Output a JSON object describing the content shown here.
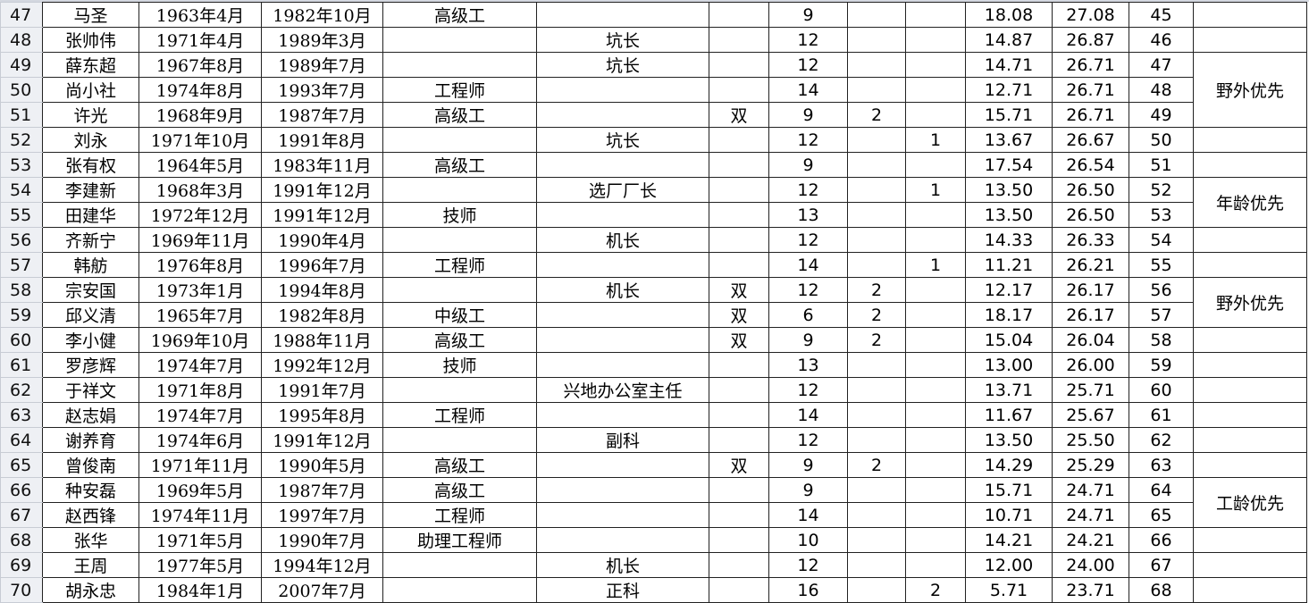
{
  "rows": [
    {
      "row": "47",
      "name": "马圣",
      "birth": "1963年4月",
      "work": "1982年10月",
      "title": "高级工",
      "post": "",
      "dbl": "",
      "score": "9",
      "c9": "",
      "c10": "",
      "c11": "18.08",
      "total": "27.08",
      "rank": "45"
    },
    {
      "row": "48",
      "name": "张帅伟",
      "birth": "1971年4月",
      "work": "1989年3月",
      "title": "",
      "post": "坑长",
      "dbl": "",
      "score": "12",
      "c9": "",
      "c10": "",
      "c11": "14.87",
      "total": "26.87",
      "rank": "46"
    },
    {
      "row": "49",
      "name": "薛东超",
      "birth": "1967年8月",
      "work": "1989年7月",
      "title": "",
      "post": "坑长",
      "dbl": "",
      "score": "12",
      "c9": "",
      "c10": "",
      "c11": "14.71",
      "total": "26.71",
      "rank": "47"
    },
    {
      "row": "50",
      "name": "尚小社",
      "birth": "1974年8月",
      "work": "1993年7月",
      "title": "工程师",
      "post": "",
      "dbl": "",
      "score": "14",
      "c9": "",
      "c10": "",
      "c11": "12.71",
      "total": "26.71",
      "rank": "48"
    },
    {
      "row": "51",
      "name": "许光",
      "birth": "1968年9月",
      "work": "1987年7月",
      "title": "高级工",
      "post": "",
      "dbl": "双",
      "score": "9",
      "c9": "2",
      "c10": "",
      "c11": "15.71",
      "total": "26.71",
      "rank": "49"
    },
    {
      "row": "52",
      "name": "刘永",
      "birth": "1971年10月",
      "work": "1991年8月",
      "title": "",
      "post": "坑长",
      "dbl": "",
      "score": "12",
      "c9": "",
      "c10": "1",
      "c11": "13.67",
      "total": "26.67",
      "rank": "50"
    },
    {
      "row": "53",
      "name": "张有权",
      "birth": "1964年5月",
      "work": "1983年11月",
      "title": "高级工",
      "post": "",
      "dbl": "",
      "score": "9",
      "c9": "",
      "c10": "",
      "c11": "17.54",
      "total": "26.54",
      "rank": "51"
    },
    {
      "row": "54",
      "name": "李建新",
      "birth": "1968年3月",
      "work": "1991年12月",
      "title": "",
      "post": "选厂厂长",
      "dbl": "",
      "score": "12",
      "c9": "",
      "c10": "1",
      "c11": "13.50",
      "total": "26.50",
      "rank": "52"
    },
    {
      "row": "55",
      "name": "田建华",
      "birth": "1972年12月",
      "work": "1991年12月",
      "title": "技师",
      "post": "",
      "dbl": "",
      "score": "13",
      "c9": "",
      "c10": "",
      "c11": "13.50",
      "total": "26.50",
      "rank": "53"
    },
    {
      "row": "56",
      "name": "齐新宁",
      "birth": "1969年11月",
      "work": "1990年4月",
      "title": "",
      "post": "机长",
      "dbl": "",
      "score": "12",
      "c9": "",
      "c10": "",
      "c11": "14.33",
      "total": "26.33",
      "rank": "54"
    },
    {
      "row": "57",
      "name": "韩舫",
      "birth": "1976年8月",
      "work": "1996年7月",
      "title": "工程师",
      "post": "",
      "dbl": "",
      "score": "14",
      "c9": "",
      "c10": "1",
      "c11": "11.21",
      "total": "26.21",
      "rank": "55"
    },
    {
      "row": "58",
      "name": "宗安国",
      "birth": "1973年1月",
      "work": "1994年8月",
      "title": "",
      "post": "机长",
      "dbl": "双",
      "score": "12",
      "c9": "2",
      "c10": "",
      "c11": "12.17",
      "total": "26.17",
      "rank": "56"
    },
    {
      "row": "59",
      "name": "邱义清",
      "birth": "1965年7月",
      "work": "1982年8月",
      "title": "中级工",
      "post": "",
      "dbl": "双",
      "score": "6",
      "c9": "2",
      "c10": "",
      "c11": "18.17",
      "total": "26.17",
      "rank": "57"
    },
    {
      "row": "60",
      "name": "李小健",
      "birth": "1969年10月",
      "work": "1988年11月",
      "title": "高级工",
      "post": "",
      "dbl": "双",
      "score": "9",
      "c9": "2",
      "c10": "",
      "c11": "15.04",
      "total": "26.04",
      "rank": "58"
    },
    {
      "row": "61",
      "name": "罗彦辉",
      "birth": "1974年7月",
      "work": "1992年12月",
      "title": "技师",
      "post": "",
      "dbl": "",
      "score": "13",
      "c9": "",
      "c10": "",
      "c11": "13.00",
      "total": "26.00",
      "rank": "59"
    },
    {
      "row": "62",
      "name": "于祥文",
      "birth": "1971年8月",
      "work": "1991年7月",
      "title": "",
      "post": "兴地办公室主任",
      "dbl": "",
      "score": "12",
      "c9": "",
      "c10": "",
      "c11": "13.71",
      "total": "25.71",
      "rank": "60"
    },
    {
      "row": "63",
      "name": "赵志娟",
      "birth": "1974年7月",
      "work": "1995年8月",
      "title": "工程师",
      "post": "",
      "dbl": "",
      "score": "14",
      "c9": "",
      "c10": "",
      "c11": "11.67",
      "total": "25.67",
      "rank": "61"
    },
    {
      "row": "64",
      "name": "谢养育",
      "birth": "1974年6月",
      "work": "1991年12月",
      "title": "",
      "post": "副科",
      "dbl": "",
      "score": "12",
      "c9": "",
      "c10": "",
      "c11": "13.50",
      "total": "25.50",
      "rank": "62"
    },
    {
      "row": "65",
      "name": "曾俊南",
      "birth": "1971年11月",
      "work": "1990年5月",
      "title": "高级工",
      "post": "",
      "dbl": "双",
      "score": "9",
      "c9": "2",
      "c10": "",
      "c11": "14.29",
      "total": "25.29",
      "rank": "63"
    },
    {
      "row": "66",
      "name": "种安磊",
      "birth": "1969年5月",
      "work": "1987年7月",
      "title": "高级工",
      "post": "",
      "dbl": "",
      "score": "9",
      "c9": "",
      "c10": "",
      "c11": "15.71",
      "total": "24.71",
      "rank": "64"
    },
    {
      "row": "67",
      "name": "赵西锋",
      "birth": "1974年11月",
      "work": "1997年7月",
      "title": "工程师",
      "post": "",
      "dbl": "",
      "score": "14",
      "c9": "",
      "c10": "",
      "c11": "10.71",
      "total": "24.71",
      "rank": "65"
    },
    {
      "row": "68",
      "name": "张华",
      "birth": "1971年5月",
      "work": "1990年7月",
      "title": "助理工程师",
      "post": "",
      "dbl": "",
      "score": "10",
      "c9": "",
      "c10": "",
      "c11": "14.21",
      "total": "24.21",
      "rank": "66"
    },
    {
      "row": "69",
      "name": "王周",
      "birth": "1977年5月",
      "work": "1994年12月",
      "title": "",
      "post": "机长",
      "dbl": "",
      "score": "12",
      "c9": "",
      "c10": "",
      "c11": "12.00",
      "total": "24.00",
      "rank": "67"
    },
    {
      "row": "70",
      "name": "胡永忠",
      "birth": "1984年1月",
      "work": "2007年7月",
      "title": "",
      "post": "正科",
      "dbl": "",
      "score": "16",
      "c9": "",
      "c10": "2",
      "c11": "5.71",
      "total": "23.71",
      "rank": "68"
    }
  ],
  "remarks": [
    {
      "start": "49",
      "span": 3,
      "text": "野外优先"
    },
    {
      "start": "54",
      "span": 2,
      "text": "年龄优先"
    },
    {
      "start": "58",
      "span": 2,
      "text": "野外优先"
    },
    {
      "start": "66",
      "span": 2,
      "text": "工龄优先"
    }
  ]
}
